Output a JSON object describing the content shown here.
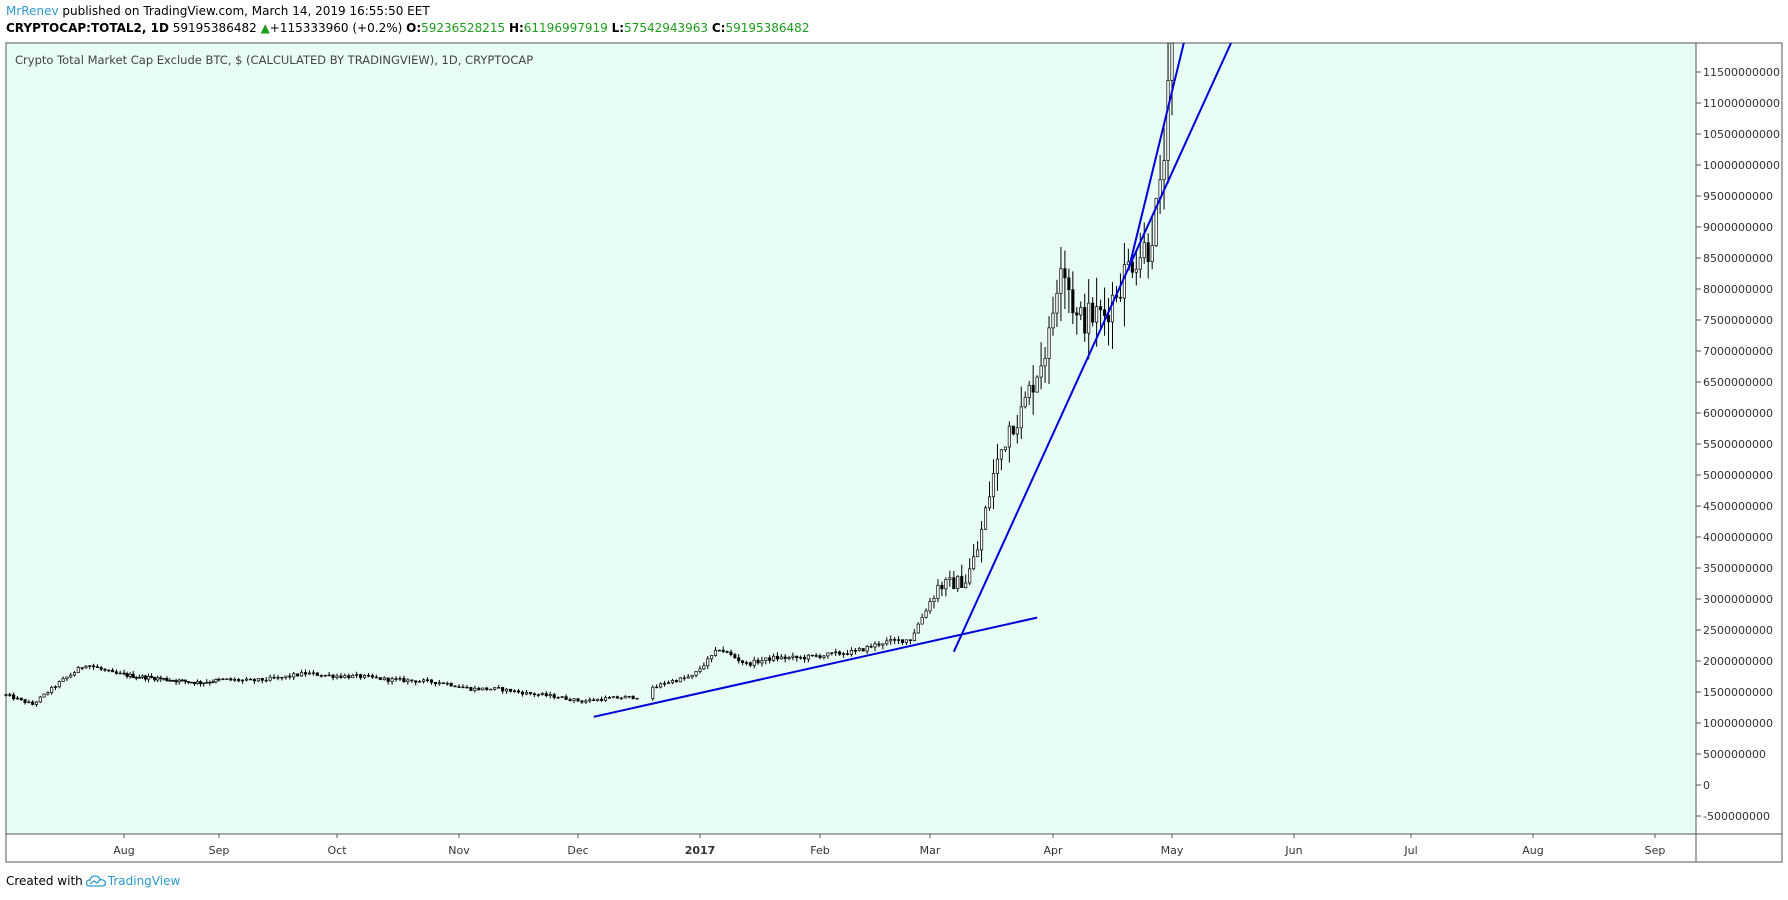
{
  "header": {
    "author": "MrRenev",
    "published_text": " published on TradingView.com, March 14, 2019 16:55:50 EET"
  },
  "ohlc": {
    "symbol": "CRYPTOCAP:TOTAL2, 1D",
    "last": "59195386482",
    "change_arrow": "▲",
    "change": "+115333960 (+0.2%)",
    "o_label": "O:",
    "o_value": "59236528215",
    "h_label": "H:",
    "h_value": "61196997919",
    "l_label": "L:",
    "l_value": "57542943963",
    "c_label": "C:",
    "c_value": "59195386482"
  },
  "footer": {
    "created_with": "Created with",
    "brand": "TradingView",
    "brand_color": "#2e9ad0"
  },
  "colors": {
    "plot_background": "#e8fdf4",
    "trendline": "#0000dd",
    "candle": "#000000"
  },
  "chart_data": {
    "type": "candlestick",
    "title": "Crypto Total Market Cap Exclude BTC, $ (CALCULATED BY TRADINGVIEW), 1D, CRYPTOCAP",
    "x_tick_labels": [
      "Aug",
      "Sep",
      "Oct",
      "Nov",
      "Dec",
      "2017",
      "Feb",
      "Mar",
      "Apr",
      "May",
      "Jun",
      "Jul",
      "Aug",
      "Sep"
    ],
    "y_tick_labels": [
      "-500000000",
      "0",
      "500000000",
      "1000000000",
      "1500000000",
      "2000000000",
      "2500000000",
      "3000000000",
      "3500000000",
      "4000000000",
      "4500000000",
      "5000000000",
      "5500000000",
      "6000000000",
      "6500000000",
      "7000000000",
      "7500000000",
      "8000000000",
      "8500000000",
      "9000000000",
      "9500000000",
      "10000000000",
      "10500000000",
      "11000000000",
      "11500000000"
    ],
    "y_axis_label_position": "right",
    "grid": false,
    "y_range": [
      -800000000,
      12000000000
    ],
    "x_range": [
      "2016-07-01",
      "2017-09-20"
    ],
    "price_series": [
      [
        "2016-07-01",
        1450000000
      ],
      [
        "2016-07-08",
        1300000000
      ],
      [
        "2016-07-15",
        1650000000
      ],
      [
        "2016-07-22",
        1950000000
      ],
      [
        "2016-07-29",
        1800000000
      ],
      [
        "2016-08-05",
        1750000000
      ],
      [
        "2016-08-12",
        1720000000
      ],
      [
        "2016-08-19",
        1680000000
      ],
      [
        "2016-08-26",
        1650000000
      ],
      [
        "2016-09-02",
        1700000000
      ],
      [
        "2016-09-09",
        1680000000
      ],
      [
        "2016-09-16",
        1720000000
      ],
      [
        "2016-09-23",
        1800000000
      ],
      [
        "2016-09-30",
        1760000000
      ],
      [
        "2016-10-07",
        1750000000
      ],
      [
        "2016-10-14",
        1700000000
      ],
      [
        "2016-10-21",
        1680000000
      ],
      [
        "2016-10-28",
        1650000000
      ],
      [
        "2016-11-04",
        1550000000
      ],
      [
        "2016-11-11",
        1550000000
      ],
      [
        "2016-11-18",
        1480000000
      ],
      [
        "2016-11-25",
        1430000000
      ],
      [
        "2016-12-02",
        1350000000
      ],
      [
        "2016-12-09",
        1400000000
      ],
      [
        "2016-12-16",
        1420000000
      ],
      [
        "2016-12-23",
        1650000000
      ],
      [
        "2016-12-30",
        1750000000
      ],
      [
        "2017-01-06",
        2200000000
      ],
      [
        "2017-01-13",
        1950000000
      ],
      [
        "2017-01-20",
        2050000000
      ],
      [
        "2017-01-27",
        2050000000
      ],
      [
        "2017-02-03",
        2100000000
      ],
      [
        "2017-02-10",
        2150000000
      ],
      [
        "2017-02-17",
        2300000000
      ],
      [
        "2017-02-24",
        2350000000
      ],
      [
        "2017-03-03",
        3200000000
      ],
      [
        "2017-03-10",
        3300000000
      ],
      [
        "2017-03-13",
        3800000000
      ],
      [
        "2017-03-17",
        5000000000
      ],
      [
        "2017-03-21",
        5800000000
      ],
      [
        "2017-03-24",
        6000000000
      ],
      [
        "2017-03-31",
        7200000000
      ],
      [
        "2017-04-03",
        8600000000
      ],
      [
        "2017-04-07",
        7500000000
      ],
      [
        "2017-04-14",
        7600000000
      ],
      [
        "2017-04-21",
        8500000000
      ],
      [
        "2017-04-25",
        8700000000
      ],
      [
        "2017-04-28",
        9500000000
      ],
      [
        "2017-04-30",
        11000000000
      ],
      [
        "2017-05-01",
        12000000000
      ]
    ],
    "trendlines": [
      {
        "from": [
          "2016-12-05",
          1100000000
        ],
        "to": [
          "2017-03-28",
          2700000000
        ]
      },
      {
        "from": [
          "2017-03-07",
          2150000000
        ],
        "to": [
          "2017-05-16",
          12000000000
        ]
      },
      {
        "from": [
          "2017-04-20",
          8300000000
        ],
        "to": [
          "2017-05-04",
          12000000000
        ]
      }
    ]
  }
}
